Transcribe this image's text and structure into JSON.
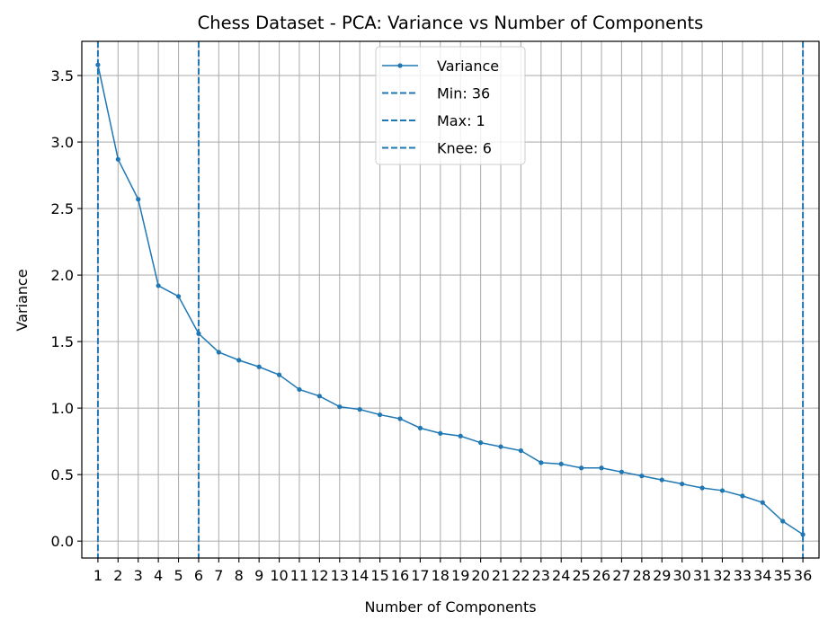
{
  "chart_data": {
    "type": "line",
    "title": "Chess Dataset - PCA: Variance vs Number of Components",
    "xlabel": "Number of Components",
    "ylabel": "Variance",
    "x": [
      1,
      2,
      3,
      4,
      5,
      6,
      7,
      8,
      9,
      10,
      11,
      12,
      13,
      14,
      15,
      16,
      17,
      18,
      19,
      20,
      21,
      22,
      23,
      24,
      25,
      26,
      27,
      28,
      29,
      30,
      31,
      32,
      33,
      34,
      35,
      36
    ],
    "series": [
      {
        "name": "Variance",
        "color": "#1f77b4",
        "values": [
          3.58,
          2.87,
          2.57,
          1.92,
          1.84,
          1.56,
          1.42,
          1.36,
          1.31,
          1.25,
          1.14,
          1.09,
          1.01,
          0.99,
          0.95,
          0.92,
          0.85,
          0.81,
          0.79,
          0.74,
          0.71,
          0.68,
          0.59,
          0.58,
          0.55,
          0.55,
          0.52,
          0.49,
          0.46,
          0.43,
          0.4,
          0.38,
          0.34,
          0.29,
          0.15,
          0.05
        ]
      }
    ],
    "reference_lines": [
      {
        "name": "Min: 36",
        "x": 36,
        "color": "#1f77b4",
        "style": "dashed"
      },
      {
        "name": "Max: 1",
        "x": 1,
        "color": "#1f77b4",
        "style": "dashed"
      },
      {
        "name": "Knee: 6",
        "x": 6,
        "color": "#1f77b4",
        "style": "dashed"
      }
    ],
    "xlim": [
      0.2,
      36.8
    ],
    "ylim": [
      -0.127,
      3.757
    ],
    "yticks": [
      0.0,
      0.5,
      1.0,
      1.5,
      2.0,
      2.5,
      3.0,
      3.5
    ],
    "ytick_labels": [
      "0.0",
      "0.5",
      "1.0",
      "1.5",
      "2.0",
      "2.5",
      "3.0",
      "3.5"
    ],
    "xtick_labels": [
      "1",
      "2",
      "3",
      "4",
      "5",
      "6",
      "7",
      "8",
      "9",
      "10",
      "11",
      "12",
      "13",
      "14",
      "15",
      "16",
      "17",
      "18",
      "19",
      "20",
      "21",
      "22",
      "23",
      "24",
      "25",
      "26",
      "27",
      "28",
      "29",
      "30",
      "31",
      "32",
      "33",
      "34",
      "35",
      "36"
    ],
    "grid": true,
    "legend_position": "top-center"
  }
}
